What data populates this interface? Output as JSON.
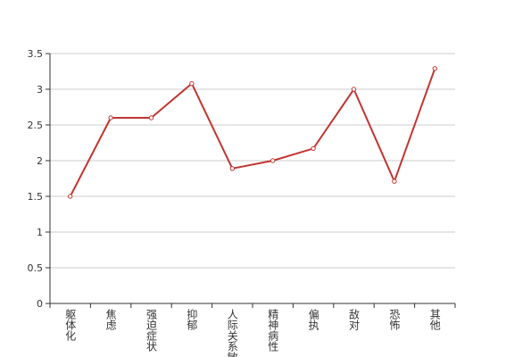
{
  "chart_data": {
    "type": "line",
    "categories": [
      "躯体化",
      "焦虑",
      "强迫症状",
      "抑郁",
      "人际关系敏感",
      "精神病性",
      "偏执",
      "敌对",
      "恐怖",
      "其他"
    ],
    "series": [
      {
        "name": "",
        "color": "#c23531",
        "values": [
          1.5,
          2.6,
          2.6,
          3.08,
          1.89,
          2.0,
          2.17,
          3.0,
          1.71,
          3.29
        ]
      }
    ],
    "ylim": [
      0,
      3.5
    ],
    "yticks": [
      0,
      0.5,
      1,
      1.5,
      2,
      2.5,
      3,
      3.5
    ],
    "grid": true
  }
}
